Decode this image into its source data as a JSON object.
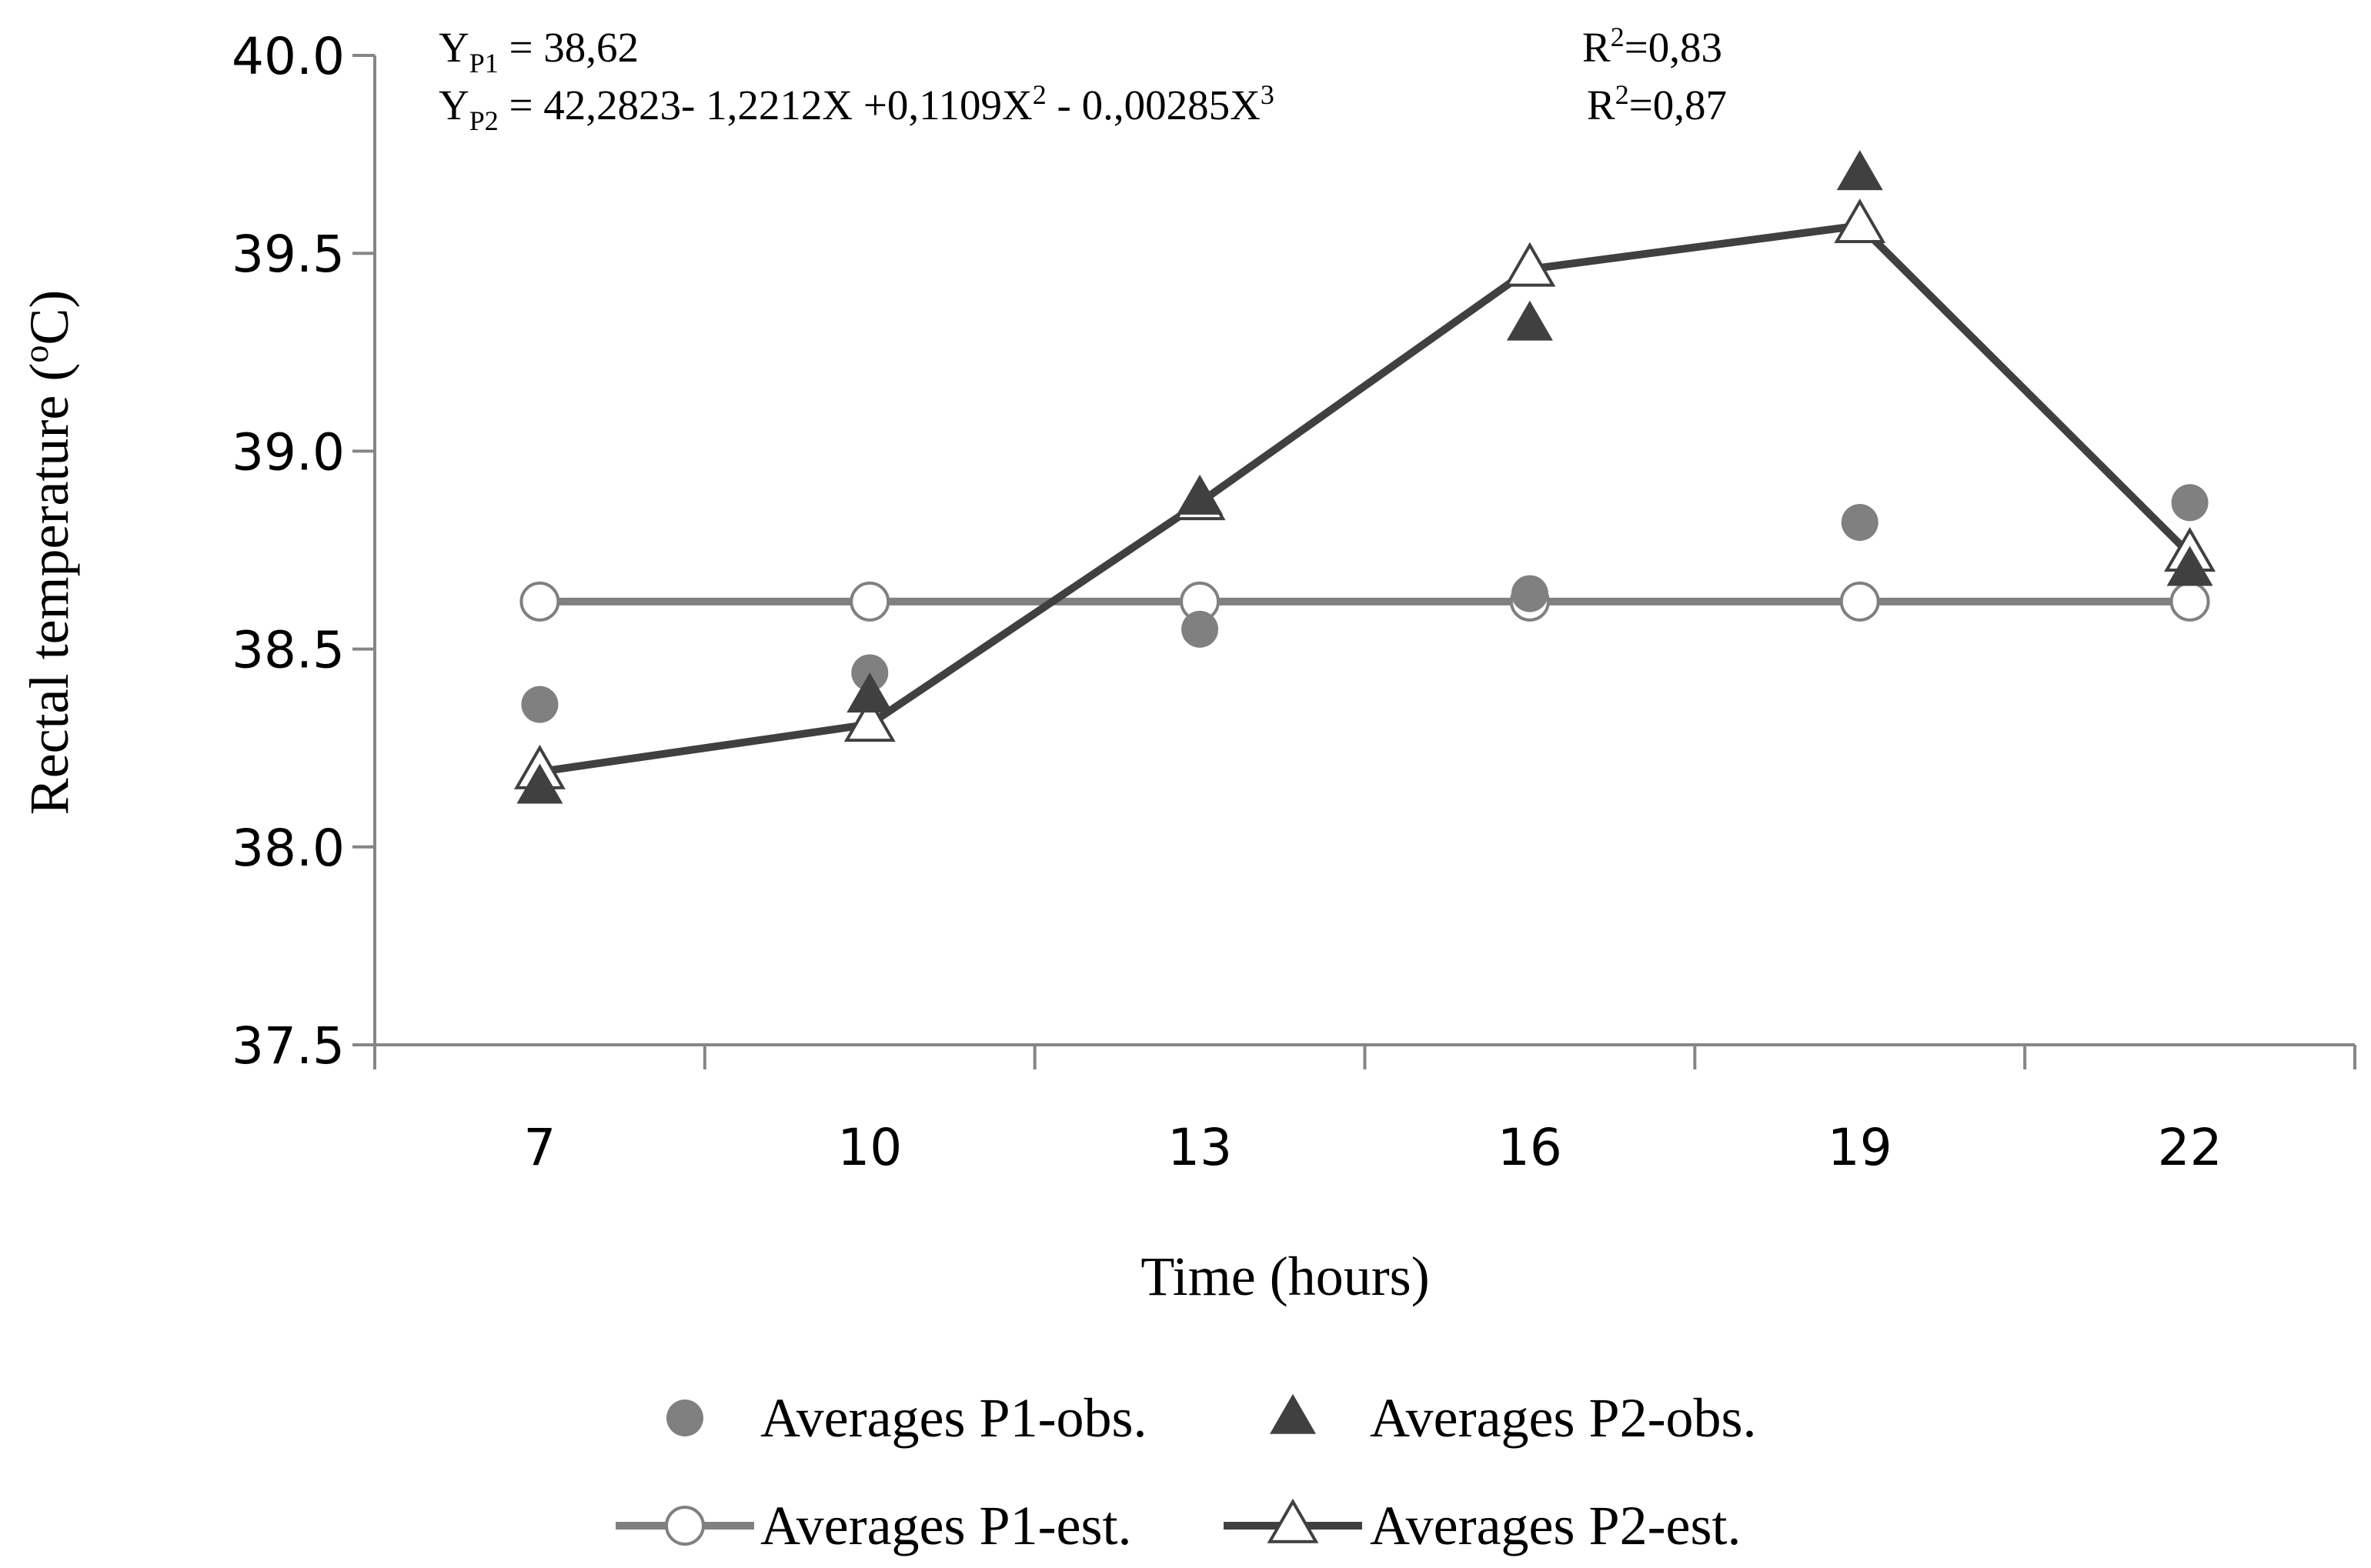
{
  "chart_data": {
    "type": "line",
    "title": "",
    "xlabel": "Time (hours)",
    "ylabel_parts": {
      "text": "Rectal temperature (",
      "sup": "o",
      "tail": "C)"
    },
    "x": [
      7,
      10,
      13,
      16,
      19,
      22
    ],
    "x_tick_labels": [
      "7",
      "10",
      "13",
      "16",
      "19",
      "22"
    ],
    "ylim": [
      37.5,
      40.0
    ],
    "y_ticks": [
      37.5,
      38.0,
      38.5,
      39.0,
      39.5,
      40.0
    ],
    "y_tick_labels": [
      "37.5",
      "38.0",
      "38.5",
      "39.0",
      "39.5",
      "40.0"
    ],
    "grid": false,
    "series": [
      {
        "name": "Averages P1-obs.",
        "marker": "circle-filled",
        "line": false,
        "color": "#808080",
        "values": [
          38.36,
          38.44,
          38.55,
          38.64,
          38.82,
          38.87
        ]
      },
      {
        "name": "Averages P2-obs.",
        "marker": "triangle-filled",
        "line": false,
        "color": "#404040",
        "values": [
          38.15,
          38.38,
          38.88,
          39.32,
          39.7,
          38.7
        ]
      },
      {
        "name": "Averages P1-est.",
        "marker": "circle-open",
        "line": true,
        "color": "#808080",
        "values": [
          38.62,
          38.62,
          38.62,
          38.62,
          38.62,
          38.62
        ]
      },
      {
        "name": "Averages P2-est.",
        "marker": "triangle-open",
        "line": true,
        "color": "#404040",
        "values": [
          38.19,
          38.31,
          38.87,
          39.46,
          39.57,
          38.74
        ]
      }
    ],
    "annotations": {
      "eq1": {
        "y": "Y",
        "sub": "P1",
        "rest": " = 38,62",
        "r2_base": "R",
        "r2_sup": "2",
        "r2_val": "=0,83"
      },
      "eq2": {
        "y": "Y",
        "sub": "P2",
        "p1": " = 42,2823- 1,2212X +0,1109X",
        "sup1": "2",
        "p2": " - 0.,00285X",
        "sup2": "3",
        "r2_base": "R",
        "r2_sup": "2",
        "r2_val": "=0,87"
      }
    },
    "legend_placement": "bottom"
  }
}
